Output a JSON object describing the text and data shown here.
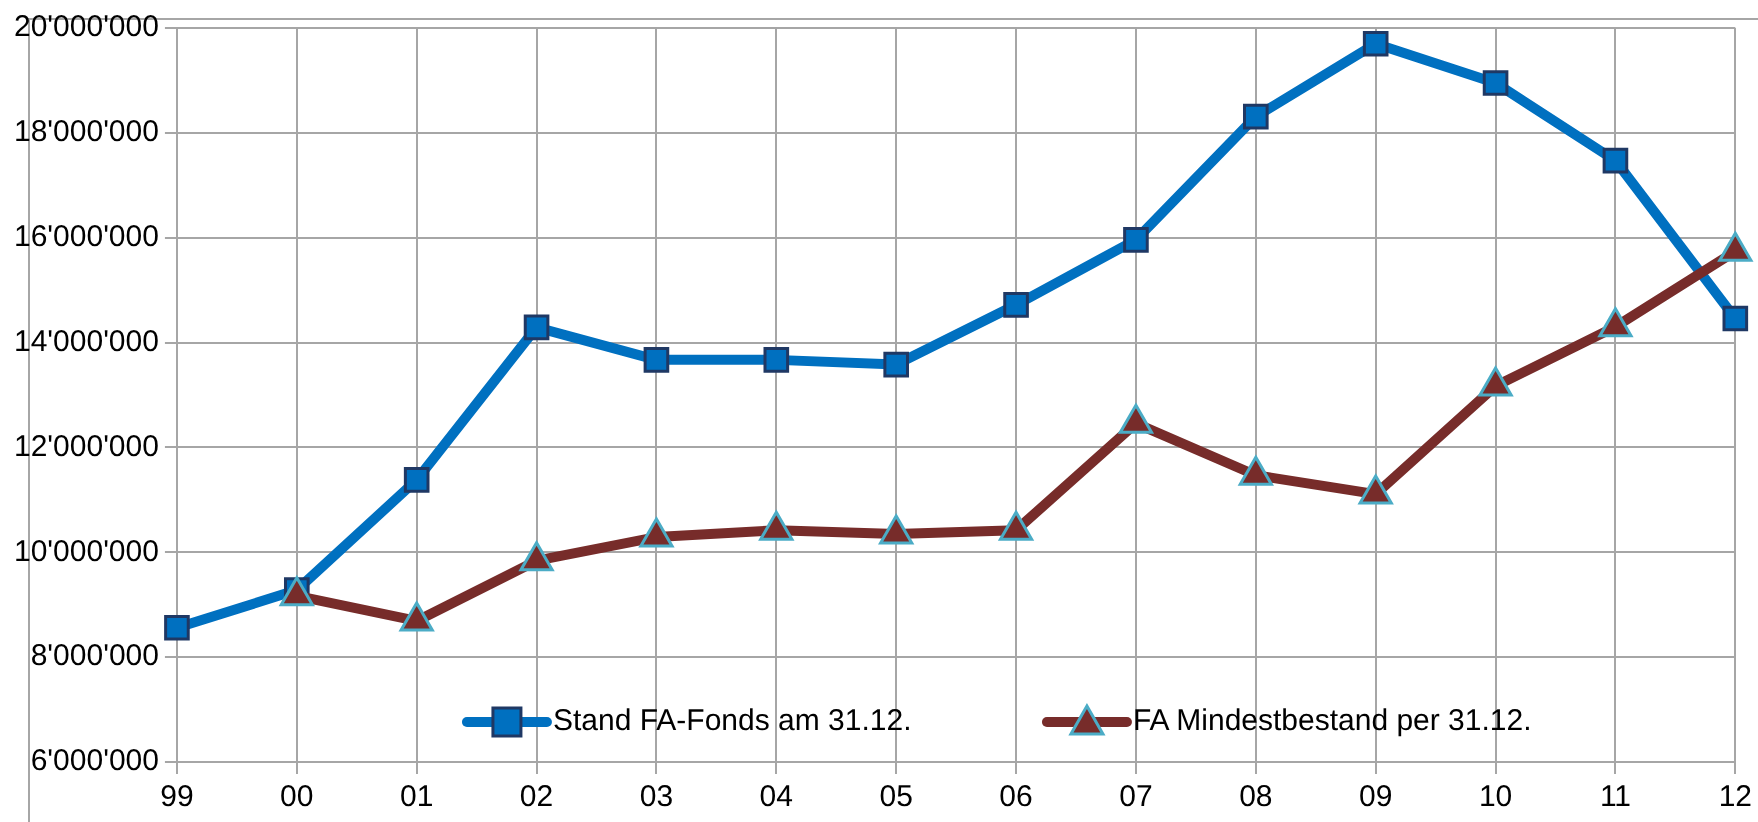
{
  "chart_data": {
    "type": "line",
    "categories": [
      "99",
      "00",
      "01",
      "02",
      "03",
      "04",
      "05",
      "06",
      "07",
      "08",
      "09",
      "10",
      "11",
      "12"
    ],
    "series": [
      {
        "name": "Stand FA-Fonds am 31.12.",
        "color": "#0070c0",
        "marker": "square",
        "values": [
          8560000,
          9280000,
          11380000,
          14290000,
          13670000,
          13670000,
          13580000,
          14720000,
          15960000,
          18310000,
          19700000,
          18950000,
          17470000,
          14460000
        ]
      },
      {
        "name": "FA Mindestbestand per 31.12.",
        "color": "#772c2a",
        "marker": "triangle",
        "values": [
          null,
          9170000,
          8690000,
          9840000,
          10290000,
          10420000,
          10350000,
          10420000,
          12460000,
          11470000,
          11110000,
          13170000,
          14300000,
          15740000
        ]
      }
    ],
    "ylim": [
      6000000,
      20000000
    ],
    "yticks": [
      {
        "value": 6000000,
        "label": "6'000'000"
      },
      {
        "value": 8000000,
        "label": "8'000'000"
      },
      {
        "value": 10000000,
        "label": "10'000'000"
      },
      {
        "value": 12000000,
        "label": "12'000'000"
      },
      {
        "value": 14000000,
        "label": "14'000'000"
      },
      {
        "value": 16000000,
        "label": "16'000'000"
      },
      {
        "value": 18000000,
        "label": "18'000'000"
      },
      {
        "value": 20000000,
        "label": "20'000'000"
      }
    ],
    "grid": true,
    "legend": "bottom"
  }
}
